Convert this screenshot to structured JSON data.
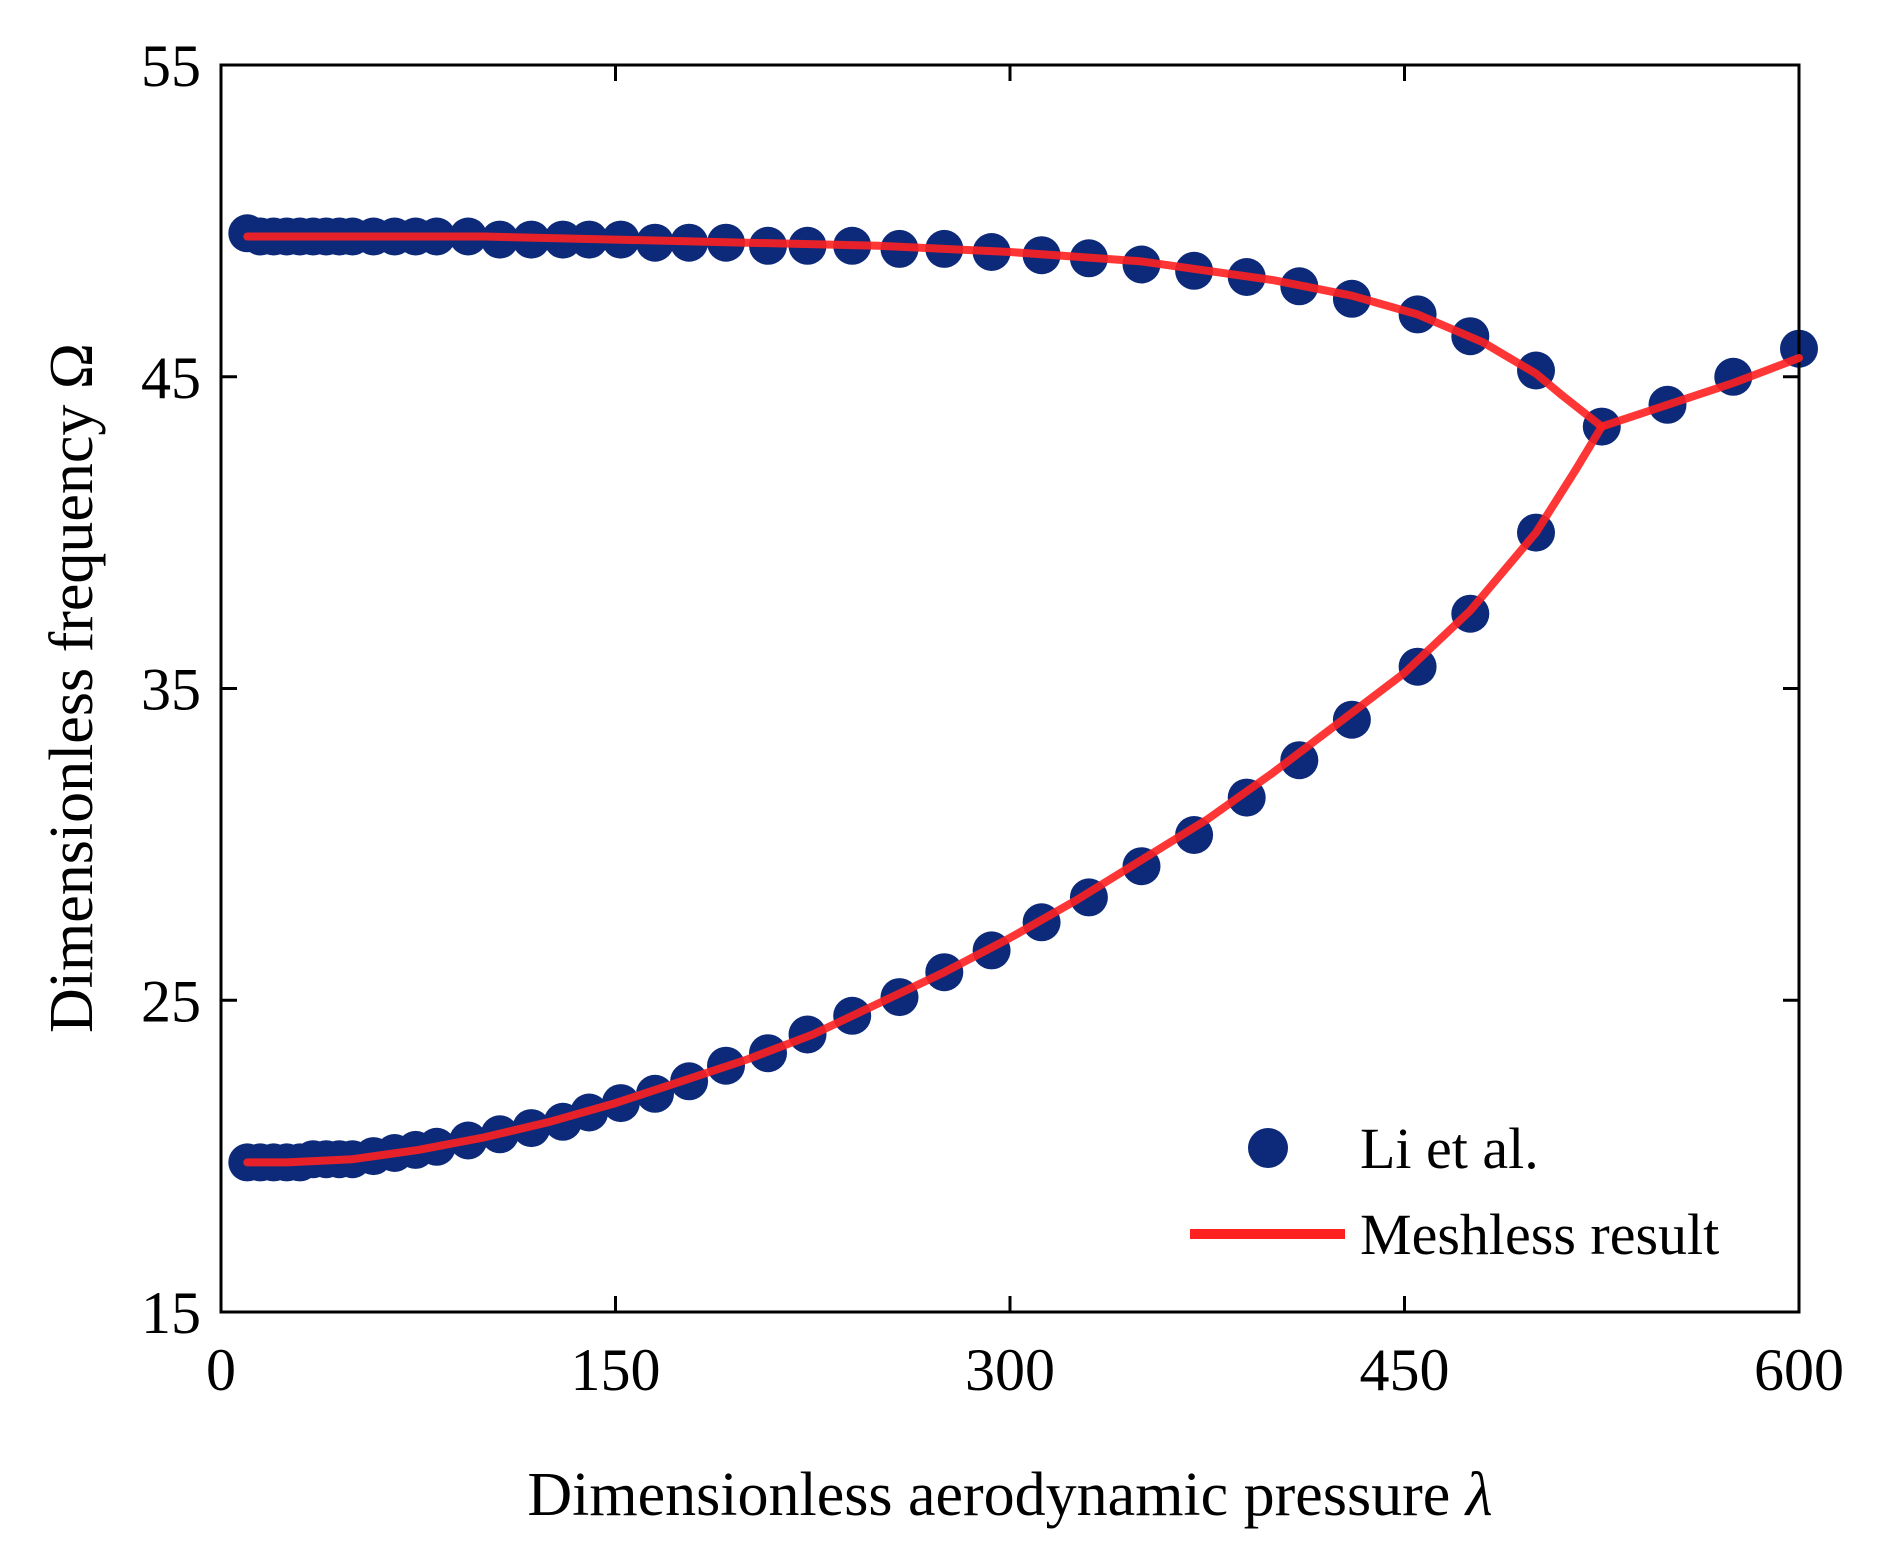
{
  "chart_data": {
    "type": "scatter+line",
    "title": "",
    "xlabel": "Dimensionless aerodynamic pressure",
    "xlabel_symbol": "λ",
    "ylabel": "Dimensionless frequency Ω",
    "xlim": [
      0,
      600
    ],
    "ylim": [
      15,
      55
    ],
    "xticks": [
      "0",
      "150",
      "300",
      "450",
      "600"
    ],
    "yticks": [
      "15",
      "25",
      "35",
      "45",
      "55"
    ],
    "xtick_values": [
      0,
      150,
      300,
      450,
      600
    ],
    "ytick_values": [
      15,
      25,
      35,
      45,
      55
    ],
    "grid": false,
    "legend_position": "bottom-right",
    "colors": {
      "markers": "#0d2a7a",
      "line": "#ff2020",
      "axes": "#000000"
    },
    "series": [
      {
        "name": "Li et al.",
        "kind": "markers",
        "branches": [
          {
            "x": [
              10,
              15,
              20,
              25,
              30,
              35,
              40,
              45,
              50,
              58,
              66,
              74,
              82,
              94,
              106,
              118,
              130,
              140,
              152,
              165,
              178,
              192,
              208,
              223,
              240,
              258,
              275,
              293,
              312,
              330,
              350,
              370,
              390,
              410,
              430,
              455,
              475,
              500,
              525,
              550,
              575,
              600
            ],
            "y": [
              49.6,
              49.5,
              49.5,
              49.5,
              49.5,
              49.5,
              49.5,
              49.5,
              49.5,
              49.5,
              49.5,
              49.5,
              49.5,
              49.5,
              49.4,
              49.4,
              49.4,
              49.4,
              49.4,
              49.3,
              49.3,
              49.3,
              49.2,
              49.2,
              49.2,
              49.1,
              49.1,
              49.0,
              48.9,
              48.8,
              48.6,
              48.4,
              48.2,
              47.9,
              47.5,
              47.0,
              46.3,
              45.2,
              43.4,
              44.1,
              45.0,
              45.9
            ]
          },
          {
            "x": [
              10,
              15,
              20,
              25,
              30,
              35,
              40,
              45,
              50,
              58,
              66,
              74,
              82,
              94,
              106,
              118,
              130,
              140,
              152,
              165,
              178,
              192,
              208,
              223,
              240,
              258,
              275,
              293,
              312,
              330,
              350,
              370,
              390,
              410,
              430,
              455,
              475,
              500
            ],
            "y": [
              19.8,
              19.8,
              19.8,
              19.8,
              19.8,
              19.9,
              19.9,
              19.9,
              19.9,
              20.0,
              20.1,
              20.2,
              20.3,
              20.5,
              20.7,
              20.9,
              21.1,
              21.4,
              21.7,
              22.0,
              22.4,
              22.9,
              23.3,
              23.9,
              24.5,
              25.1,
              25.9,
              26.6,
              27.5,
              28.3,
              29.3,
              30.3,
              31.5,
              32.7,
              34.0,
              35.7,
              37.4,
              40.0
            ]
          }
        ]
      },
      {
        "name": "Meshless result",
        "kind": "line",
        "branches": [
          {
            "x": [
              10,
              50,
              100,
              150,
              200,
              250,
              300,
              350,
              400,
              430,
              455,
              480,
              500,
              510,
              525,
              550,
              575,
              600
            ],
            "y": [
              49.5,
              49.5,
              49.5,
              49.4,
              49.3,
              49.2,
              49.0,
              48.7,
              48.1,
              47.6,
              47.0,
              46.1,
              45.1,
              44.4,
              43.4,
              44.1,
              44.8,
              45.6
            ]
          },
          {
            "x": [
              10,
              25,
              50,
              75,
              100,
              125,
              150,
              175,
              200,
              225,
              250,
              275,
              300,
              325,
              350,
              375,
              400,
              425,
              450,
              475,
              500,
              515,
              525
            ],
            "y": [
              19.8,
              19.8,
              19.9,
              20.2,
              20.6,
              21.1,
              21.7,
              22.4,
              23.1,
              23.9,
              24.9,
              25.9,
              27.0,
              28.2,
              29.5,
              30.8,
              32.3,
              33.9,
              35.5,
              37.5,
              40.0,
              42.0,
              43.4
            ]
          }
        ]
      }
    ]
  }
}
